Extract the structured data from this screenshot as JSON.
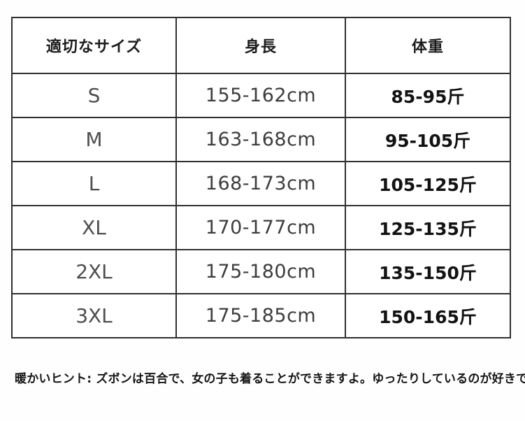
{
  "chart_data": {
    "type": "table",
    "columns": [
      "適切なサイズ",
      "身長",
      "体重"
    ],
    "rows": [
      [
        "S",
        "155-162cm",
        "85-95斤"
      ],
      [
        "M",
        "163-168cm",
        "95-105斤"
      ],
      [
        "L",
        "168-173cm",
        "105-125斤"
      ],
      [
        "XL",
        "170-177cm",
        "125-135斤"
      ],
      [
        "2XL",
        "175-180cm",
        "135-150斤"
      ],
      [
        "3XL",
        "175-185cm",
        "150-165斤"
      ]
    ]
  },
  "footnote": {
    "text": "暖かいヒント: ズボンは百合で、女の子も着ることができますよ。ゆったりしているのが好きです。"
  },
  "colors": {
    "background": "#ffffff",
    "table_border": "#2f2f2f",
    "header_text": "#1c1c1c",
    "size_column_text": "#4e4e4e",
    "height_column_text": "#3d3d3d",
    "weight_column_text": "#121212",
    "hint_text": "#161616"
  }
}
